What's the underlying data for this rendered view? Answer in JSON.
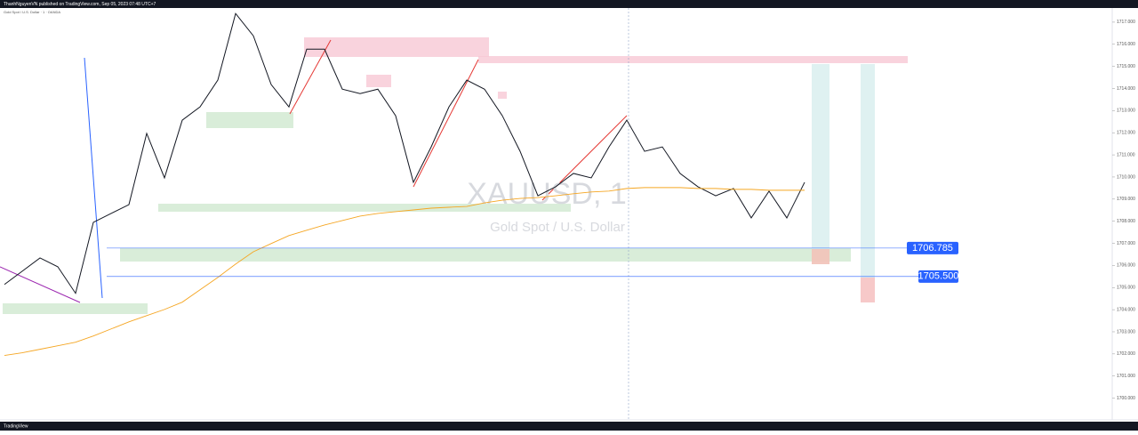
{
  "header": {
    "publisher": "ThanhNguyenVN published on TradingView.com, Sep 05, 2023 07:48 UTC+7",
    "symbol_line": "Gold Spot / U.S. Dollar · 1 · OANDA"
  },
  "footer": {
    "brand": "TradingView"
  },
  "chart_data": {
    "type": "line",
    "title": "XAUUSD, 1",
    "subtitle": "Gold Spot / U.S. Dollar",
    "categories": [
      null,
      null,
      null,
      null,
      null,
      null,
      null,
      null,
      null,
      null,
      null,
      null,
      null,
      null,
      null,
      null,
      null,
      null,
      null,
      null,
      null,
      null,
      null,
      null,
      null,
      null,
      null,
      null,
      null,
      null,
      null,
      null,
      null,
      null,
      null,
      null,
      null,
      null,
      null,
      null,
      null,
      null,
      null,
      null,
      null,
      null
    ],
    "series": [
      {
        "color": "#131722",
        "values": [
          1705.14,
          1705.74,
          1706.34,
          1705.94,
          1704.74,
          1707.95,
          1708.35,
          1708.75,
          1711.97,
          1709.96,
          1712.57,
          1713.17,
          1714.38,
          1717.39,
          1716.38,
          1714.18,
          1713.17,
          1715.78,
          1715.78,
          1713.97,
          1713.77,
          1713.97,
          1712.77,
          1709.76,
          1711.36,
          1713.17,
          1714.38,
          1713.97,
          1712.77,
          1711.16,
          1709.15,
          1709.56,
          1710.16,
          1709.96,
          1711.36,
          1712.57,
          1711.16,
          1711.36,
          1710.16,
          1709.56,
          1709.15,
          1709.48,
          1708.15,
          1709.36,
          1708.15,
          1709.76
        ]
      },
      {
        "color": "#f5a623",
        "values": [
          1701.93,
          1702.05,
          1702.21,
          1702.37,
          1702.53,
          1702.81,
          1703.13,
          1703.45,
          1703.73,
          1704.01,
          1704.34,
          1704.9,
          1705.46,
          1706.06,
          1706.62,
          1706.99,
          1707.35,
          1707.59,
          1707.83,
          1708.03,
          1708.23,
          1708.35,
          1708.43,
          1708.51,
          1708.59,
          1708.63,
          1708.67,
          1708.83,
          1708.95,
          1709.03,
          1709.07,
          1709.15,
          1709.24,
          1709.32,
          1709.36,
          1709.48,
          1709.52,
          1709.52,
          1709.52,
          1709.48,
          1709.48,
          1709.44,
          1709.44,
          1709.4,
          1709.4,
          1709.4
        ]
      }
    ],
    "levels": [
      1706.785,
      {
        "value": 1705.5,
        "label": "1705.500"
      }
    ],
    "level_color": "#2962ff",
    "ylim": [
      1699.5,
      1717.6
    ],
    "yticks": [
      {
        "value": 1700,
        "label": "1700.000"
      },
      {
        "value": 1701,
        "label": "1701.000"
      },
      {
        "value": 1702,
        "label": "1702.000"
      },
      {
        "value": 1703,
        "label": "1703.000"
      },
      {
        "value": 1704,
        "label": "1704.000"
      },
      {
        "value": 1705,
        "label": "1705.000"
      },
      {
        "value": 1706,
        "label": "1706.000"
      },
      {
        "value": 1707,
        "label": "1707.000"
      },
      {
        "value": 1708,
        "label": "1708.000"
      },
      {
        "value": 1709,
        "label": "1709.000"
      },
      {
        "value": 1710,
        "label": "1710.000"
      },
      {
        "value": 1711,
        "label": "1711.000"
      },
      {
        "value": 1712,
        "label": "1712.000"
      },
      {
        "value": 1713,
        "label": "1713.000"
      },
      {
        "value": 1714,
        "label": "1714.000"
      },
      {
        "value": 1715,
        "label": "1715.000"
      },
      {
        "value": 1716,
        "label": "1716.000"
      },
      {
        "value": 1717,
        "label": "1717.000"
      }
    ],
    "grid": false
  }
}
